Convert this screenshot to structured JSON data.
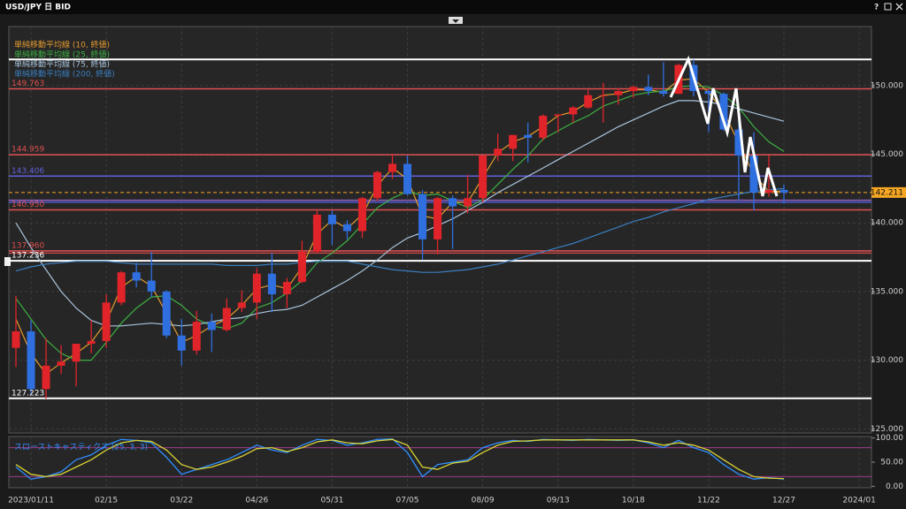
{
  "window": {
    "title": "USD/JPY 日 BID"
  },
  "chart_data": {
    "type": "candlestick",
    "categories": [
      null,
      "2023/01/11",
      null,
      null,
      null,
      null,
      "02/15",
      null,
      null,
      null,
      null,
      "03/22",
      null,
      null,
      null,
      null,
      "04/26",
      null,
      null,
      null,
      null,
      "05/31",
      null,
      null,
      null,
      null,
      "07/05",
      null,
      null,
      null,
      null,
      "08/09",
      null,
      null,
      null,
      null,
      "09/13",
      null,
      null,
      null,
      null,
      "10/18",
      null,
      null,
      null,
      null,
      "11/22",
      null,
      null,
      null,
      null,
      "12/27",
      null,
      null,
      null,
      null,
      "2024/01"
    ],
    "ohlc": [
      [
        130.9,
        134.7,
        129.5,
        132.1
      ],
      [
        132.1,
        132.9,
        127.5,
        127.9
      ],
      [
        127.9,
        131.6,
        127.2,
        129.6
      ],
      [
        129.6,
        131.1,
        129.0,
        129.9
      ],
      [
        129.9,
        131.2,
        128.1,
        131.2
      ],
      [
        131.2,
        132.9,
        130.5,
        131.4
      ],
      [
        131.4,
        134.8,
        130.9,
        134.2
      ],
      [
        134.2,
        136.5,
        134.0,
        136.4
      ],
      [
        136.4,
        137.1,
        135.3,
        135.8
      ],
      [
        135.8,
        137.9,
        134.6,
        135.0
      ],
      [
        135.0,
        135.1,
        131.6,
        131.8
      ],
      [
        131.8,
        133.0,
        129.6,
        130.7
      ],
      [
        130.7,
        133.6,
        130.4,
        132.8
      ],
      [
        132.8,
        133.4,
        130.6,
        132.2
      ],
      [
        132.2,
        134.5,
        132.1,
        133.8
      ],
      [
        133.8,
        135.1,
        133.5,
        134.2
      ],
      [
        134.2,
        136.7,
        133.0,
        136.3
      ],
      [
        136.3,
        137.8,
        133.5,
        134.8
      ],
      [
        134.8,
        136.0,
        133.8,
        135.7
      ],
      [
        135.7,
        138.7,
        135.6,
        137.9
      ],
      [
        137.9,
        140.9,
        137.8,
        140.6
      ],
      [
        140.6,
        140.9,
        138.4,
        139.9
      ],
      [
        139.9,
        140.2,
        138.8,
        139.4
      ],
      [
        139.4,
        141.9,
        138.9,
        141.8
      ],
      [
        141.8,
        143.8,
        141.6,
        143.7
      ],
      [
        143.7,
        145.0,
        143.2,
        144.3
      ],
      [
        144.3,
        144.9,
        142.0,
        142.1
      ],
      [
        142.1,
        142.4,
        137.3,
        138.8
      ],
      [
        138.8,
        141.9,
        137.7,
        141.8
      ],
      [
        141.8,
        142.0,
        138.1,
        141.2
      ],
      [
        141.2,
        143.5,
        140.7,
        141.8
      ],
      [
        141.8,
        144.9,
        141.5,
        144.9
      ],
      [
        144.9,
        146.5,
        144.5,
        145.4
      ],
      [
        145.4,
        146.4,
        144.5,
        146.4
      ],
      [
        146.4,
        147.3,
        144.4,
        146.2
      ],
      [
        146.2,
        147.9,
        146.0,
        147.8
      ],
      [
        147.8,
        147.9,
        146.6,
        147.9
      ],
      [
        147.9,
        148.5,
        147.3,
        148.4
      ],
      [
        148.4,
        149.7,
        148.3,
        149.3
      ],
      [
        149.3,
        150.2,
        147.3,
        149.3
      ],
      [
        149.3,
        149.8,
        148.6,
        149.6
      ],
      [
        149.6,
        150.0,
        149.1,
        149.9
      ],
      [
        149.9,
        150.8,
        149.3,
        149.6
      ],
      [
        149.6,
        151.7,
        149.2,
        149.4
      ],
      [
        149.4,
        151.6,
        149.4,
        151.5
      ],
      [
        151.5,
        151.9,
        149.2,
        149.6
      ],
      [
        149.6,
        149.7,
        146.6,
        149.4
      ],
      [
        149.4,
        149.5,
        146.7,
        146.8
      ],
      [
        146.8,
        147.5,
        141.6,
        144.9
      ],
      [
        144.9,
        146.6,
        140.9,
        142.2
      ],
      [
        142.2,
        144.9,
        141.9,
        142.4
      ],
      [
        142.4,
        142.8,
        141.4,
        142.2
      ],
      null,
      null,
      null,
      null,
      null
    ],
    "up_color": "#e0242a",
    "down_color": "#2f6fe0",
    "ylim": [
      124.7,
      154.3
    ],
    "yticks": [
      {
        "value": 125,
        "label": "125.000"
      },
      {
        "value": 130,
        "label": "130.000"
      },
      {
        "value": 135,
        "label": "135.000"
      },
      {
        "value": 140,
        "label": "140.000"
      },
      {
        "value": 145,
        "label": "145.000"
      },
      {
        "value": 150,
        "label": "150.000"
      }
    ],
    "grid": true,
    "series": [
      {
        "name": "単純移動平均線 (10, 終値)",
        "color": "#e39b2f",
        "values": [
          133.0,
          130.5,
          129.0,
          129.8,
          130.5,
          131.3,
          132.8,
          135.3,
          136.1,
          135.4,
          133.4,
          131.3,
          131.8,
          132.5,
          133.0,
          134.0,
          135.2,
          135.5,
          135.2,
          136.8,
          139.2,
          140.2,
          139.6,
          140.6,
          142.7,
          144.0,
          143.2,
          140.5,
          140.3,
          141.5,
          141.5,
          143.3,
          145.1,
          145.9,
          146.3,
          147.0,
          147.8,
          148.1,
          148.8,
          149.3,
          149.4,
          149.7,
          149.7,
          149.5,
          150.4,
          150.5,
          149.5,
          148.1,
          145.8,
          143.5,
          142.3,
          142.3,
          null,
          null,
          null,
          null,
          null
        ]
      },
      {
        "name": "単純移動平均線 (25, 終値)",
        "color": "#3cb043",
        "values": [
          134.5,
          133.0,
          131.5,
          130.5,
          130.0,
          130.0,
          131.3,
          132.7,
          133.8,
          134.6,
          134.7,
          134.0,
          133.0,
          132.5,
          132.3,
          132.7,
          133.8,
          134.2,
          134.9,
          135.8,
          137.1,
          137.8,
          138.7,
          139.9,
          141.1,
          141.8,
          142.3,
          142.0,
          142.1,
          141.6,
          141.1,
          141.7,
          142.8,
          143.9,
          144.9,
          146.1,
          146.7,
          147.3,
          147.8,
          148.5,
          148.9,
          149.3,
          149.5,
          149.6,
          149.9,
          150.0,
          149.9,
          149.3,
          148.4,
          147.0,
          145.9,
          145.2,
          null,
          null,
          null,
          null,
          null
        ]
      },
      {
        "name": "単純移動平均線 (75, 終値)",
        "color": "#a9c4dd",
        "values": [
          140.0,
          138.2,
          136.6,
          135.0,
          133.8,
          132.9,
          132.5,
          132.5,
          132.6,
          132.7,
          132.6,
          132.5,
          132.6,
          132.8,
          133.0,
          133.1,
          133.4,
          133.6,
          133.7,
          134.0,
          134.6,
          135.2,
          135.8,
          136.5,
          137.3,
          138.2,
          138.9,
          139.3,
          139.8,
          140.3,
          140.9,
          141.5,
          142.2,
          142.8,
          143.4,
          144.0,
          144.6,
          145.2,
          145.8,
          146.4,
          147.0,
          147.5,
          148.0,
          148.5,
          148.9,
          148.9,
          148.8,
          148.6,
          148.3,
          148.0,
          147.7,
          147.4,
          null,
          null,
          null,
          null,
          null
        ]
      },
      {
        "name": "単純移動平均線 (200, 終値)",
        "color": "#3a7fc1",
        "values": [
          136.5,
          136.8,
          137.0,
          137.1,
          137.2,
          137.2,
          137.2,
          137.1,
          137.0,
          137.0,
          137.0,
          137.0,
          137.0,
          137.0,
          136.9,
          136.9,
          136.9,
          137.0,
          137.0,
          137.1,
          137.2,
          137.2,
          137.2,
          137.0,
          136.8,
          136.6,
          136.5,
          136.4,
          136.4,
          136.5,
          136.6,
          136.8,
          137.0,
          137.3,
          137.6,
          137.9,
          138.2,
          138.5,
          138.9,
          139.3,
          139.7,
          140.1,
          140.4,
          140.8,
          141.1,
          141.4,
          141.7,
          141.9,
          142.1,
          142.3,
          142.4,
          142.5,
          null,
          null,
          null,
          null,
          null
        ]
      }
    ],
    "levels": [
      {
        "value": 151.9,
        "color": "#ffffff"
      },
      {
        "value": 149.763,
        "label": "149.763",
        "color": "#e05050"
      },
      {
        "value": 144.959,
        "label": "144.959",
        "color": "#e05050"
      },
      {
        "value": 143.406,
        "label": "143.406",
        "color": "#6060d8"
      },
      {
        "value": 141.65,
        "color": "#9060c0"
      },
      {
        "value": 141.5,
        "color": "#4a5ad0"
      },
      {
        "value": 140.95,
        "label": "140.950",
        "color": "#e05050"
      },
      {
        "value": 137.96,
        "label": "137.960",
        "color": "#e05050"
      },
      {
        "value": 137.8,
        "color": "#c04848"
      },
      {
        "value": 137.236,
        "label": "137.236",
        "color": "#ffffff"
      },
      {
        "value": 127.223,
        "label": "127.223",
        "color": "#ffffff"
      }
    ],
    "last_price": {
      "value": 142.211,
      "color": "#f5a623"
    },
    "oscillator": {
      "title": "スローストキャスティクス (25, 3, 3)",
      "ylim": [
        -3,
        103
      ],
      "yticks": [
        {
          "value": 0,
          "label": "0.00"
        },
        {
          "value": 50,
          "label": "50.00"
        },
        {
          "value": 100,
          "label": "100.00"
        }
      ],
      "levels": [
        20,
        80
      ],
      "level_color": "#a03a8a",
      "series": [
        {
          "color": "#2f8fff",
          "values": [
            40,
            15,
            20,
            30,
            55,
            65,
            85,
            97,
            95,
            90,
            60,
            25,
            35,
            45,
            55,
            70,
            85,
            75,
            70,
            85,
            97,
            95,
            85,
            90,
            97,
            98,
            70,
            20,
            45,
            50,
            55,
            80,
            90,
            95,
            93,
            97,
            96,
            95,
            97,
            96,
            95,
            96,
            90,
            80,
            95,
            80,
            70,
            45,
            25,
            15,
            18,
            15,
            null,
            null,
            null,
            null,
            null
          ]
        },
        {
          "color": "#d7d335",
          "values": [
            45,
            25,
            20,
            25,
            40,
            55,
            75,
            90,
            95,
            93,
            75,
            45,
            35,
            40,
            50,
            62,
            78,
            80,
            72,
            80,
            92,
            96,
            90,
            88,
            94,
            97,
            85,
            40,
            35,
            48,
            52,
            70,
            85,
            93,
            94,
            96,
            96,
            96,
            96,
            96,
            96,
            96,
            92,
            85,
            90,
            85,
            75,
            55,
            35,
            20,
            17,
            16,
            null,
            null,
            null,
            null,
            null
          ]
        }
      ]
    }
  }
}
